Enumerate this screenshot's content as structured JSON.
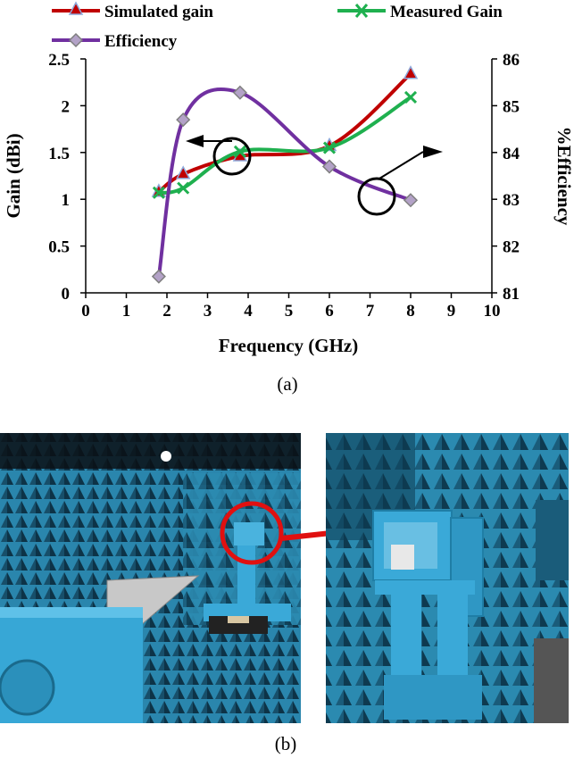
{
  "chart_data": {
    "type": "line",
    "x": [
      1.8,
      2.4,
      3.8,
      6.0,
      8.0
    ],
    "xlabel": "Frequency (GHz)",
    "ylabel": "Gain (dBi)",
    "y2label": "%Efficiency",
    "xlim": [
      0,
      10
    ],
    "ylim": [
      0,
      2.5
    ],
    "y2lim": [
      81,
      86
    ],
    "xticks": [
      "0",
      "1",
      "2",
      "3",
      "4",
      "5",
      "6",
      "7",
      "8",
      "9",
      "10"
    ],
    "yticks": [
      "0",
      "0.5",
      "1",
      "1.5",
      "2",
      "2.5"
    ],
    "y2ticks": [
      "81",
      "82",
      "83",
      "84",
      "85",
      "86"
    ],
    "grid": false,
    "legend": "top",
    "series": [
      {
        "name": "Simulated gain",
        "axis": "left",
        "values": [
          1.08,
          1.27,
          1.46,
          1.57,
          2.34
        ],
        "color": "#c00000",
        "marker": "triangle"
      },
      {
        "name": "Measured Gain",
        "axis": "left",
        "values": [
          1.07,
          1.12,
          1.51,
          1.55,
          2.09
        ],
        "color": "#1fb04f",
        "marker": "x"
      },
      {
        "name": "Efficiency",
        "axis": "right",
        "values": [
          81.35,
          84.7,
          85.28,
          83.7,
          82.98
        ],
        "color": "#7030a0",
        "marker": "diamond"
      }
    ],
    "annotations": {
      "left_arrow_circle": "points to gain axis",
      "right_arrow_circle": "points to efficiency axis"
    }
  },
  "captions": {
    "a": "(a)",
    "b": "(b)"
  },
  "colors": {
    "chamber_blue": "#1f7ea6",
    "highlight_red": "#e01010"
  }
}
